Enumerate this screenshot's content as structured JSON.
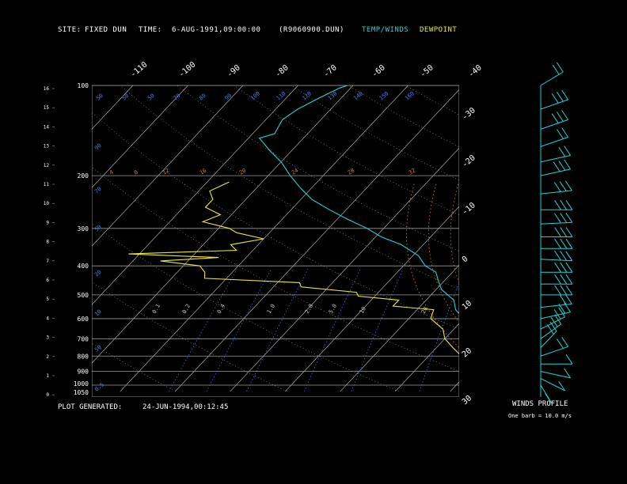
{
  "header": {
    "site_label": "SITE:",
    "site_value": "FIXED DUN",
    "time_label": "TIME:",
    "time_value": "6-AUG-1991,09:00:00",
    "file": "(R9060900.DUN)",
    "legend_temp": "TEMP/WINDS",
    "legend_dew": "DEWPOINT"
  },
  "footer": {
    "generated_label": "PLOT GENERATED:",
    "generated_value": "24-JUN-1994,00:12:45",
    "winds_title": "WINDS PROFILE",
    "barb_note": "One barb = 10.0 m/s"
  },
  "colors": {
    "temp": "#22d4d4",
    "dew": "#e8e83a",
    "isotherm": "#c8c8c8",
    "mixing": "#3a6ad8",
    "moist_adiabat": "#d87a3a",
    "dry_adiabat": "#d8d8d8"
  },
  "chart_data": {
    "type": "line",
    "chart_kind": "skew-T log-P sounding",
    "pressure_levels": [
      "100",
      "200",
      "300",
      "400",
      "500",
      "600",
      "700",
      "800",
      "900",
      "1000",
      "1050"
    ],
    "height_ticks": [
      "16",
      "15",
      "14",
      "13",
      "12",
      "11",
      "10",
      "9",
      "8",
      "7",
      "6",
      "5",
      "4",
      "3",
      "2",
      "1",
      "0"
    ],
    "isotherm_top_labels": [
      "-110",
      "-100",
      "-90",
      "-80",
      "-70",
      "-60",
      "-50",
      "-40"
    ],
    "isotherm_right_labels": [
      "-30",
      "-20",
      "-10",
      "0",
      "10",
      "20",
      "30"
    ],
    "theta_labels_upper": [
      "50",
      "50",
      "50",
      "70",
      "80",
      "90",
      "100",
      "110",
      "120",
      "130",
      "140",
      "150",
      "160"
    ],
    "theta_labels_left": [
      "90",
      "70",
      "50",
      "20",
      "10",
      "50",
      "0.5"
    ],
    "mixing_labels_mid": [
      "0.1",
      "0.2",
      "0.4",
      "1.0",
      "2.0",
      "5.0",
      "10",
      "20"
    ],
    "theta_e_labels": [
      "4",
      "8",
      "12",
      "16",
      "20",
      "24",
      "28",
      "32"
    ],
    "series": [
      {
        "name": "TEMP/WINDS",
        "points": [
          {
            "p": 1040,
            "t": 28
          },
          {
            "p": 1000,
            "t": 24
          },
          {
            "p": 950,
            "t": 21
          },
          {
            "p": 900,
            "t": 18
          },
          {
            "p": 850,
            "t": 14
          },
          {
            "p": 800,
            "t": 11
          },
          {
            "p": 750,
            "t": 8
          },
          {
            "p": 700,
            "t": 6
          },
          {
            "p": 650,
            "t": 3
          },
          {
            "p": 600,
            "t": 0
          },
          {
            "p": 560,
            "t": -3
          },
          {
            "p": 520,
            "t": -5
          },
          {
            "p": 480,
            "t": -9
          },
          {
            "p": 450,
            "t": -11
          },
          {
            "p": 420,
            "t": -13
          },
          {
            "p": 400,
            "t": -16
          },
          {
            "p": 370,
            "t": -19
          },
          {
            "p": 340,
            "t": -24
          },
          {
            "p": 320,
            "t": -29
          },
          {
            "p": 300,
            "t": -33
          },
          {
            "p": 280,
            "t": -38
          },
          {
            "p": 260,
            "t": -43
          },
          {
            "p": 240,
            "t": -48
          },
          {
            "p": 220,
            "t": -52
          },
          {
            "p": 200,
            "t": -56
          },
          {
            "p": 180,
            "t": -60
          },
          {
            "p": 165,
            "t": -64
          },
          {
            "p": 150,
            "t": -68
          },
          {
            "p": 145,
            "t": -66
          },
          {
            "p": 130,
            "t": -67
          },
          {
            "p": 120,
            "t": -66
          },
          {
            "p": 110,
            "t": -64
          },
          {
            "p": 102,
            "t": -62
          },
          {
            "p": 100,
            "t": -61
          }
        ]
      },
      {
        "name": "DEWPOINT",
        "points": [
          {
            "p": 1040,
            "t": 23
          },
          {
            "p": 1000,
            "t": 20
          },
          {
            "p": 950,
            "t": 16
          },
          {
            "p": 900,
            "t": 12
          },
          {
            "p": 850,
            "t": 9
          },
          {
            "p": 800,
            "t": 6
          },
          {
            "p": 750,
            "t": 3
          },
          {
            "p": 700,
            "t": 0
          },
          {
            "p": 650,
            "t": -2
          },
          {
            "p": 600,
            "t": -6
          },
          {
            "p": 560,
            "t": -7
          },
          {
            "p": 545,
            "t": -15
          },
          {
            "p": 520,
            "t": -15
          },
          {
            "p": 505,
            "t": -23
          },
          {
            "p": 490,
            "t": -24
          },
          {
            "p": 470,
            "t": -35
          },
          {
            "p": 455,
            "t": -36
          },
          {
            "p": 440,
            "t": -54
          },
          {
            "p": 420,
            "t": -55
          },
          {
            "p": 400,
            "t": -57
          },
          {
            "p": 385,
            "t": -65
          },
          {
            "p": 375,
            "t": -55
          },
          {
            "p": 365,
            "t": -72
          },
          {
            "p": 355,
            "t": -53
          },
          {
            "p": 340,
            "t": -55
          },
          {
            "p": 325,
            "t": -50
          },
          {
            "p": 310,
            "t": -56
          },
          {
            "p": 300,
            "t": -58
          },
          {
            "p": 285,
            "t": -64
          },
          {
            "p": 270,
            "t": -62
          },
          {
            "p": 255,
            "t": -66
          },
          {
            "p": 240,
            "t": -66
          },
          {
            "p": 225,
            "t": -68
          },
          {
            "p": 210,
            "t": -66
          }
        ]
      }
    ],
    "winds": [
      {
        "p": 100,
        "spd": 20,
        "dir": 315
      },
      {
        "p": 120,
        "spd": 30,
        "dir": 300
      },
      {
        "p": 140,
        "spd": 30,
        "dir": 300
      },
      {
        "p": 160,
        "spd": 20,
        "dir": 300
      },
      {
        "p": 180,
        "spd": 20,
        "dir": 290
      },
      {
        "p": 200,
        "spd": 30,
        "dir": 290
      },
      {
        "p": 230,
        "spd": 30,
        "dir": 280
      },
      {
        "p": 260,
        "spd": 30,
        "dir": 270
      },
      {
        "p": 290,
        "spd": 30,
        "dir": 275
      },
      {
        "p": 320,
        "spd": 30,
        "dir": 270
      },
      {
        "p": 350,
        "spd": 30,
        "dir": 270
      },
      {
        "p": 380,
        "spd": 30,
        "dir": 265
      },
      {
        "p": 420,
        "spd": 30,
        "dir": 270
      },
      {
        "p": 460,
        "spd": 30,
        "dir": 270
      },
      {
        "p": 500,
        "spd": 30,
        "dir": 270
      },
      {
        "p": 550,
        "spd": 20,
        "dir": 280
      },
      {
        "p": 600,
        "spd": 20,
        "dir": 290
      },
      {
        "p": 650,
        "spd": 20,
        "dir": 310
      },
      {
        "p": 700,
        "spd": 20,
        "dir": 320
      },
      {
        "p": 750,
        "spd": 20,
        "dir": 330
      },
      {
        "p": 800,
        "spd": 20,
        "dir": 300
      },
      {
        "p": 850,
        "spd": 10,
        "dir": 270
      },
      {
        "p": 900,
        "spd": 10,
        "dir": 250
      },
      {
        "p": 950,
        "spd": 10,
        "dir": 230
      },
      {
        "p": 1000,
        "spd": 10,
        "dir": 200
      }
    ]
  }
}
